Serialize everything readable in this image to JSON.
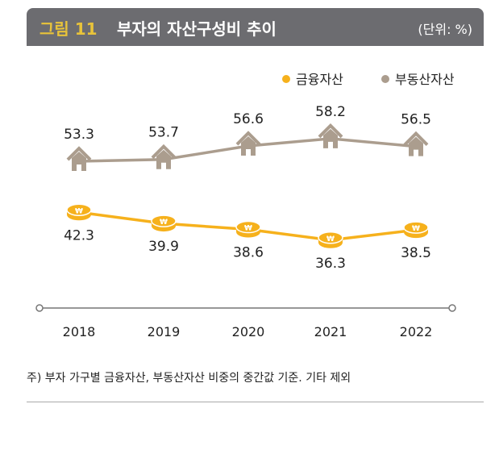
{
  "header": {
    "figure_number": "그림 11",
    "title": "부자의 자산구성비 추이",
    "unit": "(단위: %)"
  },
  "chart_data": {
    "type": "line",
    "title": "부자의 자산구성비 추이",
    "categories": [
      "2018",
      "2019",
      "2020",
      "2021",
      "2022"
    ],
    "series": [
      {
        "name": "금융자산",
        "values": [
          42.3,
          39.9,
          38.6,
          36.3,
          38.5
        ],
        "color": "#f6b11c",
        "marker": "coin-icon"
      },
      {
        "name": "부동산자산",
        "values": [
          53.3,
          53.7,
          56.6,
          58.2,
          56.5
        ],
        "color": "#ab9d8e",
        "marker": "house-icon"
      }
    ],
    "legend": "top-right",
    "grid": false
  },
  "footnote": "주) 부자 가구별 금융자산, 부동산자산 비중의 중간값 기준. 기타 제외"
}
